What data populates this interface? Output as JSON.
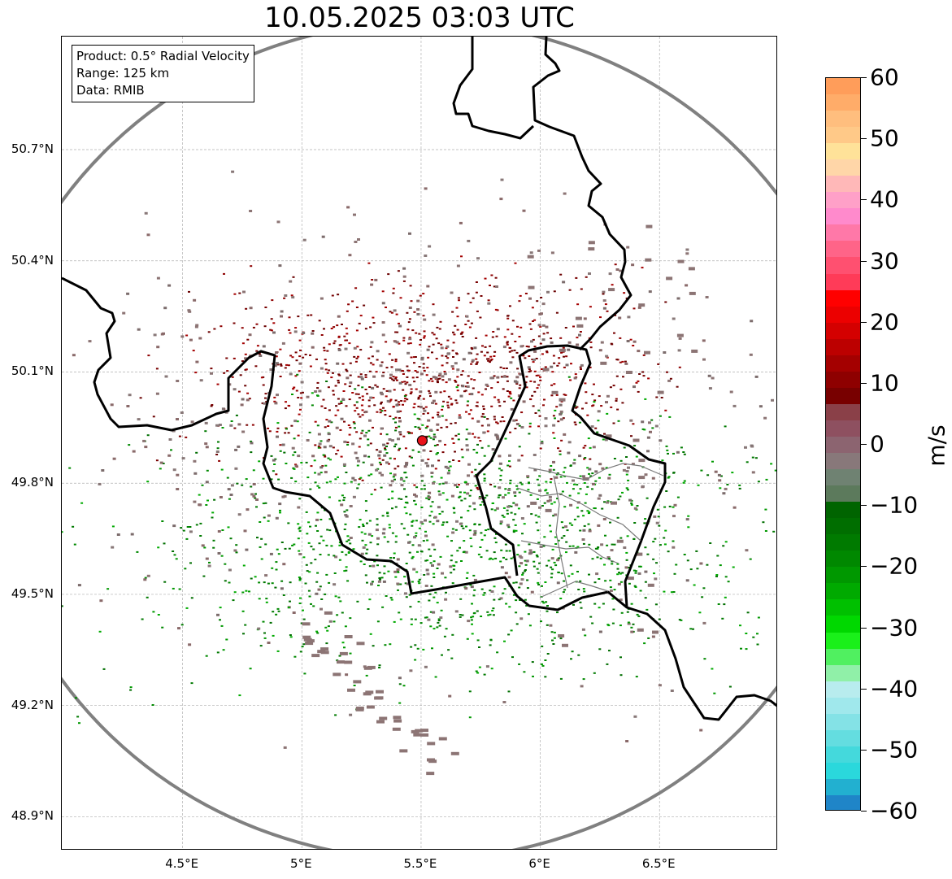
{
  "title": "10.05.2025 03:03 UTC",
  "info_box": {
    "product": "Product: 0.5° Radial Velocity",
    "range": "Range: 125 km",
    "data": "Data: RMIB"
  },
  "map": {
    "lon_range": [
      4.0,
      7.0
    ],
    "lat_range": [
      48.8,
      51.0
    ],
    "lon_ticks": [
      {
        "value": 4.5,
        "label": "4.5°E"
      },
      {
        "value": 5.0,
        "label": "5°E"
      },
      {
        "value": 5.5,
        "label": "5.5°E"
      },
      {
        "value": 6.0,
        "label": "6°E"
      },
      {
        "value": 6.5,
        "label": "6.5°E"
      }
    ],
    "lat_ticks": [
      {
        "value": 50.7,
        "label": "50.7°N"
      },
      {
        "value": 50.4,
        "label": "50.4°N"
      },
      {
        "value": 50.1,
        "label": "50.1°N"
      },
      {
        "value": 49.8,
        "label": "49.8°N"
      },
      {
        "value": 49.5,
        "label": "49.5°N"
      },
      {
        "value": 49.2,
        "label": "49.2°N"
      },
      {
        "value": 48.9,
        "label": "48.9°N"
      }
    ],
    "radar_site": {
      "lon": 5.505,
      "lat": 49.915,
      "color": "#e8121a"
    },
    "range_ring_color": "#808080",
    "grid": true
  },
  "colorbar": {
    "unit": "m/s",
    "vmin": -60,
    "vmax": 60,
    "ticks": [
      {
        "value": 60,
        "label": "60"
      },
      {
        "value": 50,
        "label": "50"
      },
      {
        "value": 40,
        "label": "40"
      },
      {
        "value": 30,
        "label": "30"
      },
      {
        "value": 20,
        "label": "20"
      },
      {
        "value": 10,
        "label": "10"
      },
      {
        "value": 0,
        "label": "0"
      },
      {
        "value": -10,
        "label": "−10"
      },
      {
        "value": -20,
        "label": "−20"
      },
      {
        "value": -30,
        "label": "−30"
      },
      {
        "value": -40,
        "label": "−40"
      },
      {
        "value": -50,
        "label": "−50"
      },
      {
        "value": -60,
        "label": "−60"
      }
    ],
    "colors_top_to_bottom": [
      "#ff9d5a",
      "#ffac69",
      "#ffbe7e",
      "#ffc988",
      "#ffe299",
      "#ffd6a8",
      "#ffb8b8",
      "#ffa0c8",
      "#ff8acc",
      "#ff78a8",
      "#ff6488",
      "#ff5070",
      "#ff3b58",
      "#ff0000",
      "#ec0000",
      "#d40000",
      "#bc0000",
      "#a40000",
      "#8e0000",
      "#780000",
      "#8a4048",
      "#8e5060",
      "#8c6470",
      "#88787a",
      "#6f8272",
      "#5c7a5c",
      "#006400",
      "#006e00",
      "#007a00",
      "#008800",
      "#009800",
      "#00aa00",
      "#00c000",
      "#00d800",
      "#1af01a",
      "#50f060",
      "#90f0a8",
      "#b8ecee",
      "#a0e8ec",
      "#84e2e6",
      "#64dde0",
      "#44d9dc",
      "#2ad8dc",
      "#22b0d0",
      "#1f85c8"
    ]
  }
}
